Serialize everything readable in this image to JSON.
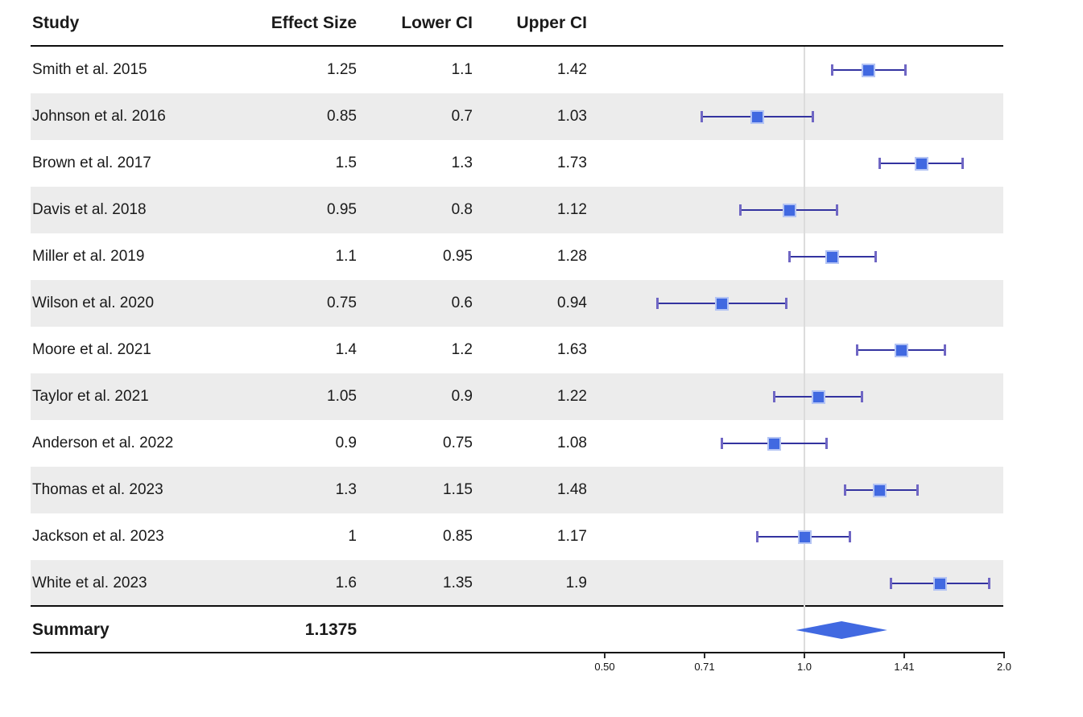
{
  "chart_data": {
    "type": "forest",
    "columns": [
      "Study",
      "Effect Size",
      "Lower CI",
      "Upper CI"
    ],
    "rows": [
      {
        "study": "Smith et al. 2015",
        "effect": 1.25,
        "lower": 1.1,
        "upper": 1.42
      },
      {
        "study": "Johnson et al. 2016",
        "effect": 0.85,
        "lower": 0.7,
        "upper": 1.03
      },
      {
        "study": "Brown et al. 2017",
        "effect": 1.5,
        "lower": 1.3,
        "upper": 1.73
      },
      {
        "study": "Davis et al. 2018",
        "effect": 0.95,
        "lower": 0.8,
        "upper": 1.12
      },
      {
        "study": "Miller et al. 2019",
        "effect": 1.1,
        "lower": 0.95,
        "upper": 1.28
      },
      {
        "study": "Wilson et al. 2020",
        "effect": 0.75,
        "lower": 0.6,
        "upper": 0.94
      },
      {
        "study": "Moore et al. 2021",
        "effect": 1.4,
        "lower": 1.2,
        "upper": 1.63
      },
      {
        "study": "Taylor et al. 2021",
        "effect": 1.05,
        "lower": 0.9,
        "upper": 1.22
      },
      {
        "study": "Anderson et al. 2022",
        "effect": 0.9,
        "lower": 0.75,
        "upper": 1.08
      },
      {
        "study": "Thomas et al. 2023",
        "effect": 1.3,
        "lower": 1.15,
        "upper": 1.48
      },
      {
        "study": "Jackson et al. 2023",
        "effect": 1,
        "lower": 0.85,
        "upper": 1.17
      },
      {
        "study": "White et al. 2023",
        "effect": 1.6,
        "lower": 1.35,
        "upper": 1.9
      }
    ],
    "summary": {
      "label": "Summary",
      "effect": 1.1375,
      "diamond_lower": 0.9708,
      "diamond_upper": 1.3333
    },
    "axis": {
      "scale": "log2",
      "range": [
        0.5,
        2.0
      ],
      "reference_line": 1.0,
      "ticks": [
        {
          "label": "0.50",
          "value": 0.5
        },
        {
          "label": "0.71",
          "value": 0.7071
        },
        {
          "label": "1.0",
          "value": 1.0
        },
        {
          "label": "1.41",
          "value": 1.4142
        },
        {
          "label": "2.0",
          "value": 2.0
        }
      ]
    },
    "colors": {
      "marker": "#4169e1",
      "marker_border": "#b4c4f4",
      "ci_line": "#3333a0",
      "cap": "#6f66c4",
      "diamond": "#4169e1",
      "reference_line": "#dcdcdc",
      "stripe": "#ececec",
      "text": "#1a1a1a"
    }
  }
}
